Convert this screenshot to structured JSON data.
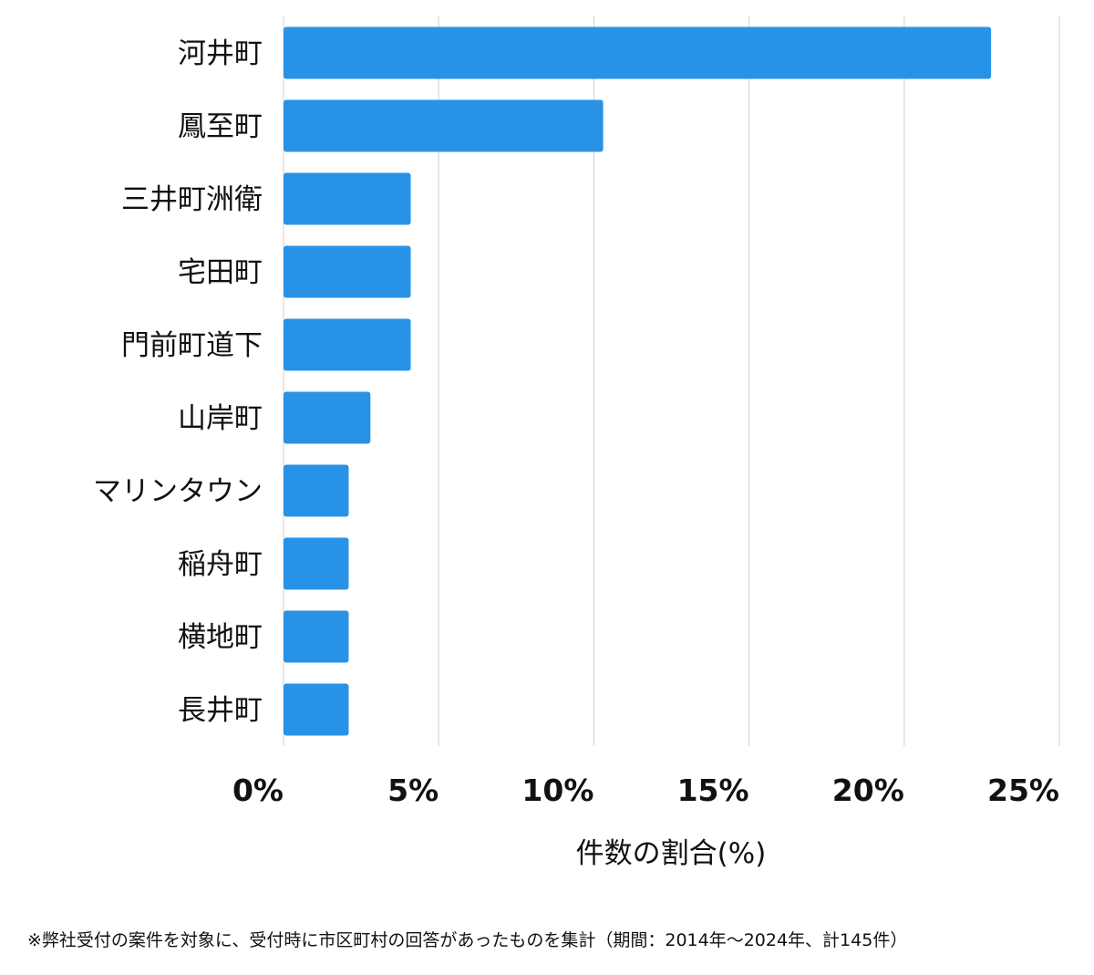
{
  "chart_data": {
    "type": "bar",
    "orientation": "horizontal",
    "categories": [
      "河井町",
      "鳳至町",
      "三井町洲衛",
      "宅田町",
      "門前町道下",
      "山岸町",
      "マリンタウン",
      "稲舟町",
      "横地町",
      "長井町"
    ],
    "values": [
      22.8,
      10.3,
      4.1,
      4.1,
      4.1,
      2.8,
      2.1,
      2.1,
      2.1,
      2.1
    ],
    "xlim": [
      0,
      25
    ],
    "xticks": [
      0,
      5,
      10,
      15,
      20,
      25
    ],
    "xtick_labels": [
      "0%",
      "5%",
      "10%",
      "15%",
      "20%",
      "25%"
    ],
    "xlabel": "件数の割合(%)",
    "ylabel": "",
    "grid": true,
    "bar_color": "#2893e6",
    "grid_color": "#d9d9d9"
  },
  "footnote": "※弊社受付の案件を対象に、受付時に市区町村の回答があったものを集計（期間：2014年～2024年、計145件）"
}
